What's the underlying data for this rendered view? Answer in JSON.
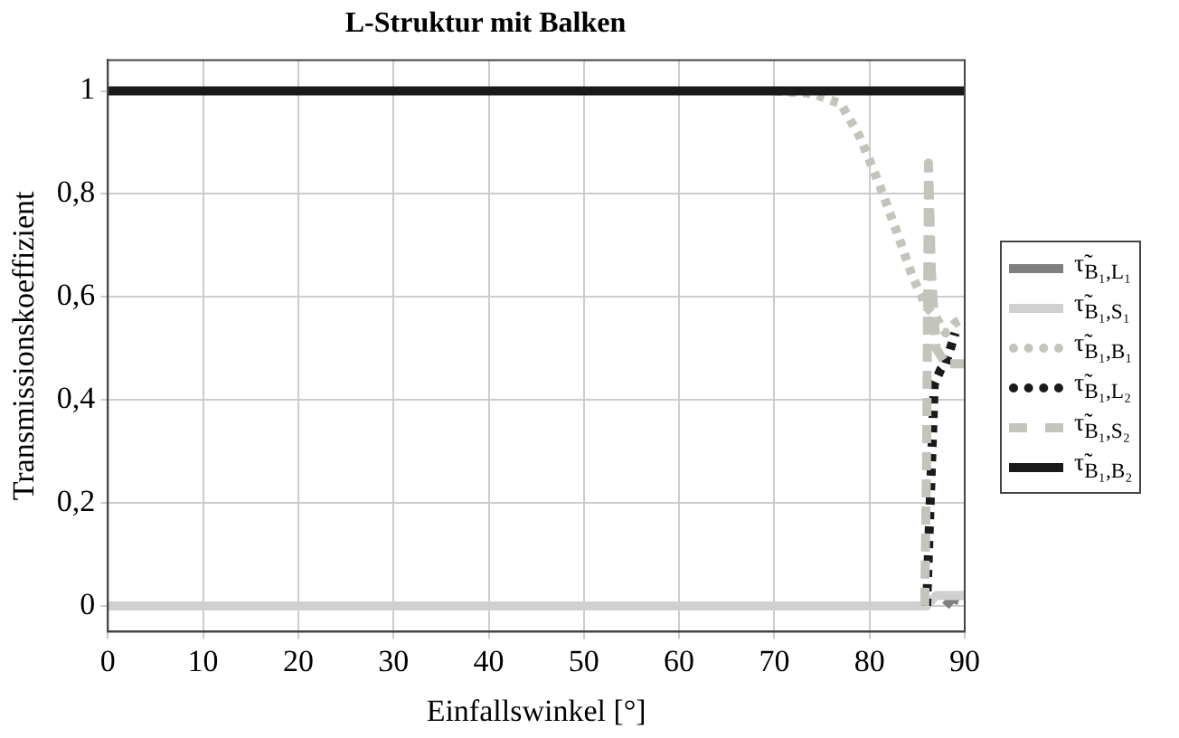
{
  "chart_data": {
    "type": "line",
    "title": "L-Struktur mit Balken",
    "xlabel": "Einfallswinkel [°]",
    "ylabel": "Transmissionskoeffizient",
    "xlim": [
      0,
      90
    ],
    "xticks": [
      0,
      10,
      20,
      30,
      40,
      50,
      60,
      70,
      80,
      90
    ],
    "ylim": [
      -0.05,
      1.06
    ],
    "yticks": [
      0,
      {
        "value": 0.2,
        "label": "0,2"
      },
      {
        "value": 0.4,
        "label": "0,4"
      },
      {
        "value": 0.6,
        "label": "0,6"
      },
      {
        "value": 0.8,
        "label": "0,8"
      },
      1
    ],
    "grid": true,
    "legend": "right",
    "marker": "none",
    "series": [
      {
        "name": "τ̃$_{B₁,L₁}$",
        "color": "#7f7f7f",
        "line_style": "solid",
        "x": [
          88,
          88.7,
          89.4
        ],
        "values": [
          0,
          0.015,
          0.01
        ]
      },
      {
        "name": "τ̃$_{B₁,S₁}$",
        "color": "#d0d0d0",
        "line_style": "solid",
        "x": [
          0,
          86,
          87,
          88,
          89,
          90
        ],
        "values": [
          0,
          0,
          0.02,
          0.02,
          0.02,
          0.02
        ]
      },
      {
        "name": "τ̃$_{B₁,B₁}$",
        "color": "#c4c4bc",
        "line_style": "dotted",
        "x": [
          70,
          74,
          77,
          79,
          81,
          83,
          84.5,
          85.5,
          86,
          87,
          88,
          89,
          90
        ],
        "values": [
          1,
          0.995,
          0.975,
          0.91,
          0.82,
          0.72,
          0.64,
          0.6,
          0.58,
          0.56,
          0.53,
          0.55,
          0.56
        ]
      },
      {
        "name": "τ̃$_{B₁,L₂}$",
        "color": "#1a1a1a",
        "line_style": "dotted",
        "x": [
          86,
          86.8,
          87.5,
          88,
          88.5,
          89
        ],
        "values": [
          0,
          0.43,
          0.46,
          0.47,
          0.5,
          0.53
        ]
      },
      {
        "name": "τ̃$_{B₁,S₂}$",
        "color": "#c4c4bc",
        "line_style": "dashed",
        "x": [
          85.8,
          86,
          86.2,
          86.5,
          87,
          88,
          89,
          90
        ],
        "values": [
          0,
          0.3,
          0.86,
          0.65,
          0.5,
          0.47,
          0.47,
          0.47
        ]
      },
      {
        "name": "τ̃$_{B₁,B₂}$",
        "color": "#1a1a1a",
        "line_style": "solid",
        "x": [
          0,
          90
        ],
        "values": [
          1,
          1
        ]
      }
    ]
  }
}
